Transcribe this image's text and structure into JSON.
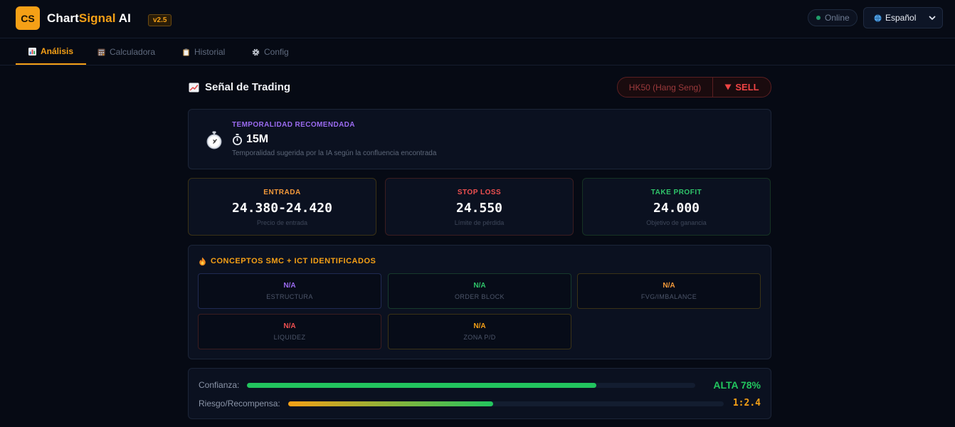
{
  "app": {
    "logo_initials": "CS",
    "name_part1": "Chart",
    "name_part2": "Signal",
    "name_part3": " AI",
    "version": "v2.5",
    "status": "Online",
    "language": "Español"
  },
  "tabs": [
    {
      "label": "Análisis",
      "icon": "bar-chart-icon",
      "active": true
    },
    {
      "label": "Calculadora",
      "icon": "calculator-icon",
      "active": false
    },
    {
      "label": "Historial",
      "icon": "clipboard-icon",
      "active": false
    },
    {
      "label": "Config",
      "icon": "gear-icon",
      "active": false
    }
  ],
  "signal": {
    "title": "Señal de Trading",
    "symbol": "HK50 (Hang Seng)",
    "action": "SELL"
  },
  "timeframe": {
    "label": "TEMPORALIDAD RECOMENDADA",
    "value": "15M",
    "description": "Temporalidad sugerida por la IA según la confluencia encontrada"
  },
  "levels": {
    "entry": {
      "label": "ENTRADA",
      "value": "24.380-24.420",
      "sub": "Precio de entrada"
    },
    "stop": {
      "label": "STOP LOSS",
      "value": "24.550",
      "sub": "Límite de pérdida"
    },
    "tp": {
      "label": "TAKE PROFIT",
      "value": "24.000",
      "sub": "Objetivo de ganancia"
    }
  },
  "smc": {
    "title": "CONCEPTOS SMC + ICT IDENTIFICADOS",
    "items": [
      {
        "value": "N/A",
        "label": "ESTRUCTURA"
      },
      {
        "value": "N/A",
        "label": "ORDER BLOCK"
      },
      {
        "value": "N/A",
        "label": "FVG/IMBALANCE"
      },
      {
        "value": "N/A",
        "label": "LIQUIDEZ"
      },
      {
        "value": "N/A",
        "label": "ZONA P/D"
      }
    ]
  },
  "metrics": {
    "confidence_label": "Confianza:",
    "confidence_value": "ALTA 78%",
    "confidence_fraction": 0.78,
    "rr_label": "Riesgo/Recompensa:",
    "rr_value": "1:2.4",
    "rr_fraction": 0.47
  },
  "colors": {
    "accent": "#f5a016",
    "sell": "#ef4444",
    "purple": "#9b6bf0",
    "green": "#22c55e"
  }
}
